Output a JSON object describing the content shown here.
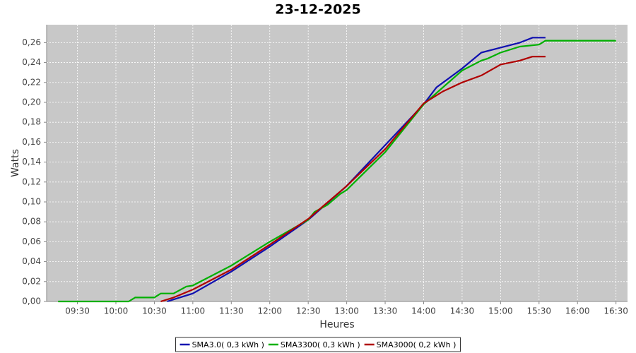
{
  "chart_data": {
    "type": "line",
    "title": "23-12-2025",
    "xlabel": "Heures",
    "ylabel": "Watts",
    "xlim": [
      "09:06",
      "16:39"
    ],
    "xticks": [
      "09:30",
      "10:00",
      "10:30",
      "11:00",
      "11:30",
      "12:00",
      "12:30",
      "13:00",
      "13:30",
      "14:00",
      "14:30",
      "15:00",
      "15:30",
      "16:00",
      "16:30"
    ],
    "ylim": [
      0,
      0.278
    ],
    "yticks": [
      {
        "value": 0,
        "label": "0,00"
      },
      {
        "value": 0.02,
        "label": "0,02"
      },
      {
        "value": 0.04,
        "label": "0,04"
      },
      {
        "value": 0.06,
        "label": "0,06"
      },
      {
        "value": 0.08,
        "label": "0,08"
      },
      {
        "value": 0.1,
        "label": "0,10"
      },
      {
        "value": 0.12,
        "label": "0,12"
      },
      {
        "value": 0.14,
        "label": "0,14"
      },
      {
        "value": 0.16,
        "label": "0,16"
      },
      {
        "value": 0.18,
        "label": "0,18"
      },
      {
        "value": 0.2,
        "label": "0,20"
      },
      {
        "value": 0.22,
        "label": "0,22"
      },
      {
        "value": 0.24,
        "label": "0,24"
      },
      {
        "value": 0.26,
        "label": "0,26"
      }
    ],
    "grid": true,
    "legend": "bottom",
    "series": [
      {
        "name": "SMA3.0( 0,3 kWh )",
        "color": "#1010b0",
        "x": [
          "10:40",
          "10:45",
          "11:00",
          "11:30",
          "12:00",
          "12:30",
          "13:00",
          "13:30",
          "14:00",
          "14:10",
          "14:30",
          "14:45",
          "15:00",
          "15:15",
          "15:25",
          "15:35"
        ],
        "values": [
          0,
          0.002,
          0.008,
          0.03,
          0.055,
          0.082,
          0.116,
          0.157,
          0.198,
          0.215,
          0.234,
          0.25,
          0.255,
          0.26,
          0.265,
          0.265
        ]
      },
      {
        "name": "SMA3300( 0,3 kWh )",
        "color": "#00b000",
        "x": [
          "09:15",
          "10:10",
          "10:15",
          "10:30",
          "10:35",
          "10:45",
          "10:55",
          "11:00",
          "11:30",
          "12:00",
          "12:30",
          "12:35",
          "12:45",
          "12:55",
          "13:00",
          "13:30",
          "13:45",
          "14:00",
          "14:15",
          "14:30",
          "14:45",
          "14:50",
          "15:00",
          "15:15",
          "15:30",
          "15:35",
          "16:30"
        ],
        "values": [
          0,
          0,
          0.004,
          0.004,
          0.008,
          0.008,
          0.015,
          0.016,
          0.036,
          0.06,
          0.082,
          0.09,
          0.097,
          0.108,
          0.112,
          0.15,
          0.174,
          0.198,
          0.215,
          0.232,
          0.242,
          0.244,
          0.25,
          0.256,
          0.258,
          0.262,
          0.262
        ]
      },
      {
        "name": "SMA3000( 0,2 kWh )",
        "color": "#b00000",
        "x": [
          "10:35",
          "10:45",
          "11:00",
          "11:30",
          "12:00",
          "12:30",
          "13:00",
          "13:30",
          "14:00",
          "14:15",
          "14:30",
          "14:45",
          "15:00",
          "15:15",
          "15:25",
          "15:35"
        ],
        "values": [
          0,
          0.004,
          0.012,
          0.032,
          0.057,
          0.083,
          0.116,
          0.153,
          0.199,
          0.211,
          0.22,
          0.227,
          0.238,
          0.242,
          0.246,
          0.246
        ]
      }
    ]
  }
}
